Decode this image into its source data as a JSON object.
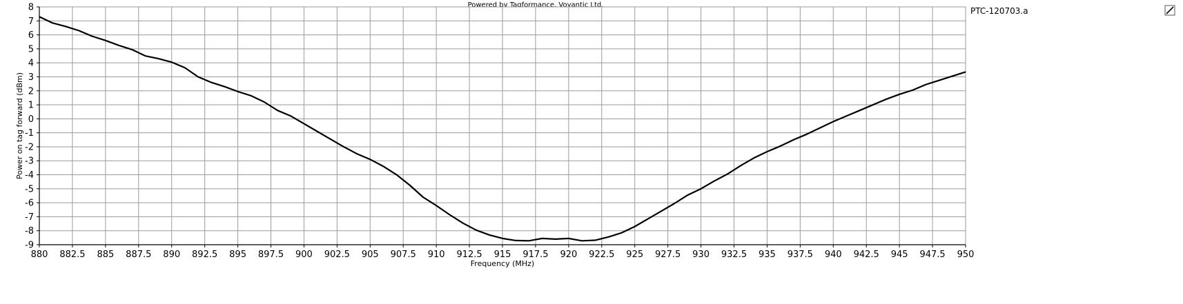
{
  "credit": "Powered by Tagformance, Voyantic Ltd.",
  "chart_data": {
    "type": "line",
    "title": "",
    "xlabel": "Frequency (MHz)",
    "ylabel": "Power on tag forward (dBm)",
    "xlim": [
      880,
      950
    ],
    "ylim": [
      -9,
      8
    ],
    "grid": true,
    "legend": "top-right",
    "x_ticks": [
      "880",
      "882.5",
      "885",
      "887.5",
      "890",
      "892.5",
      "895",
      "897.5",
      "900",
      "902.5",
      "905",
      "907.5",
      "910",
      "912.5",
      "915",
      "917.5",
      "920",
      "922.5",
      "925",
      "927.5",
      "930",
      "932.5",
      "935",
      "937.5",
      "940",
      "942.5",
      "945",
      "947.5",
      "950"
    ],
    "y_ticks": [
      "8",
      "7",
      "6",
      "5",
      "4",
      "3",
      "2",
      "1",
      "0",
      "-1",
      "-2",
      "-3",
      "-4",
      "-5",
      "-6",
      "-7",
      "-8",
      "-9"
    ],
    "series": [
      {
        "name": "PTC-120703.a",
        "color": "#000000",
        "x": [
          880,
          881,
          882,
          883,
          884,
          885,
          886,
          887,
          888,
          889,
          890,
          891,
          892,
          893,
          894,
          895,
          896,
          897,
          898,
          899,
          900,
          901,
          902,
          903,
          904,
          905,
          906,
          907,
          908,
          909,
          910,
          911,
          912,
          913,
          914,
          915,
          916,
          917,
          918,
          919,
          920,
          921,
          922,
          923,
          924,
          925,
          926,
          927,
          928,
          929,
          930,
          931,
          932,
          933,
          934,
          935,
          936,
          937,
          938,
          939,
          940,
          941,
          942,
          943,
          944,
          945,
          946,
          947,
          948,
          949,
          950
        ],
        "y": [
          7.3,
          6.85,
          6.6,
          6.3,
          5.9,
          5.6,
          5.25,
          4.95,
          4.5,
          4.3,
          4.05,
          3.65,
          3.0,
          2.6,
          2.3,
          1.95,
          1.65,
          1.2,
          0.6,
          0.2,
          -0.35,
          -0.9,
          -1.45,
          -2.0,
          -2.5,
          -2.9,
          -3.4,
          -4.0,
          -4.75,
          -5.6,
          -6.2,
          -6.85,
          -7.45,
          -7.95,
          -8.3,
          -8.55,
          -8.7,
          -8.72,
          -8.55,
          -8.6,
          -8.55,
          -8.72,
          -8.68,
          -8.45,
          -8.15,
          -7.7,
          -7.15,
          -6.6,
          -6.05,
          -5.45,
          -5.0,
          -4.45,
          -3.95,
          -3.35,
          -2.8,
          -2.35,
          -1.95,
          -1.5,
          -1.1,
          -0.65,
          -0.2,
          0.2,
          0.6,
          1.0,
          1.4,
          1.75,
          2.05,
          2.45,
          2.75,
          3.05,
          3.35
        ]
      }
    ]
  }
}
